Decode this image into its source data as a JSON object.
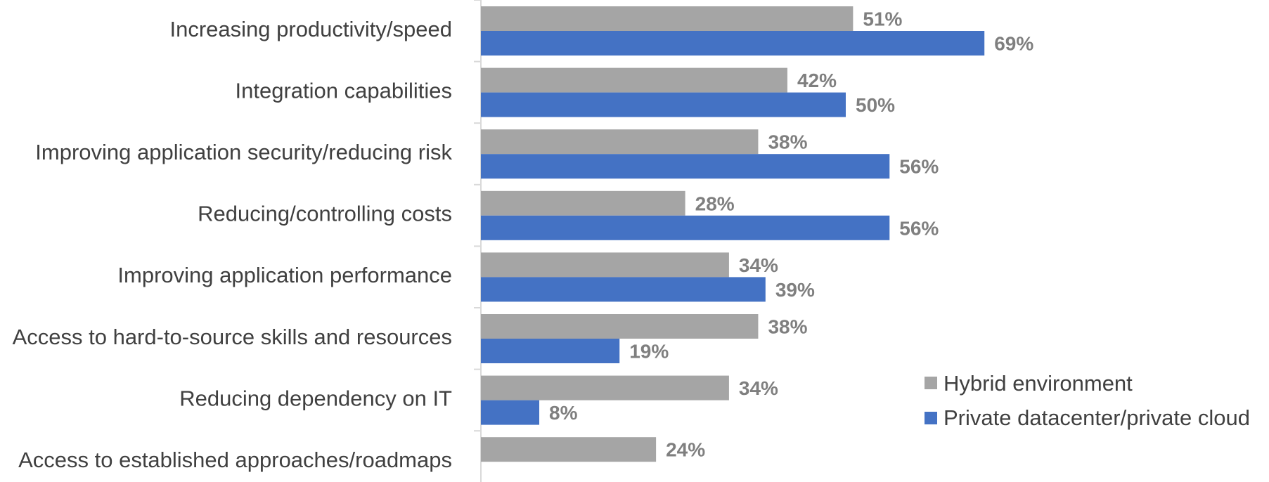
{
  "chart_data": {
    "type": "bar",
    "orientation": "horizontal",
    "title": "",
    "xlabel": "",
    "ylabel": "",
    "xlim": [
      0,
      100
    ],
    "grid": false,
    "legend_position": "bottom-right",
    "categories": [
      "Increasing productivity/speed",
      "Integration capabilities",
      "Improving application security/reducing risk",
      "Reducing/controlling costs",
      "Improving application performance",
      "Access to hard-to-source skills and resources",
      "Reducing dependency on IT",
      "Access to established approaches/roadmaps"
    ],
    "series": [
      {
        "name": "Hybrid environment",
        "color": "#a5a5a5",
        "values": [
          51,
          42,
          38,
          28,
          34,
          38,
          34,
          24
        ],
        "labels": [
          "51%",
          "42%",
          "38%",
          "28%",
          "34%",
          "38%",
          "34%",
          "24%"
        ]
      },
      {
        "name": "Private datacenter/private cloud",
        "color": "#4472c4",
        "values": [
          69,
          50,
          56,
          56,
          39,
          19,
          8,
          null
        ],
        "labels": [
          "69%",
          "50%",
          "56%",
          "56%",
          "39%",
          "19%",
          "8%",
          null
        ]
      }
    ]
  }
}
